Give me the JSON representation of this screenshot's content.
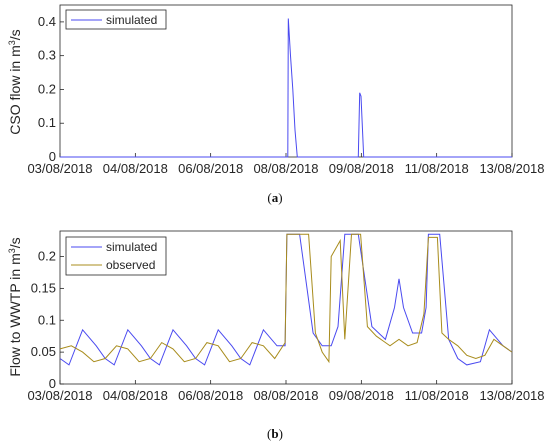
{
  "chart_data": [
    {
      "type": "line",
      "panel_label": "a",
      "ylabel_main": "CSO flow in m",
      "ylabel_sup": "3",
      "ylabel_tail": "/s",
      "xlim": [
        0,
        10
      ],
      "ylim": [
        0,
        0.45
      ],
      "x_tick_labels": [
        "03/08/2018",
        "04/08/2018",
        "06/08/2018",
        "08/08/2018",
        "09/08/2018",
        "11/08/2018",
        "13/08/2018"
      ],
      "x_tick_positions_days": [
        0,
        1.667,
        3.333,
        5,
        6.667,
        8.333,
        10
      ],
      "y_ticks": [
        0,
        0.1,
        0.2,
        0.3,
        0.4
      ],
      "y_tick_labels": [
        "0",
        "0.1",
        "0.2",
        "0.3",
        "0.4"
      ],
      "legend": {
        "position": "top-left",
        "entries": [
          "simulated"
        ]
      },
      "series": [
        {
          "name": "simulated",
          "color": "#4a4af0",
          "points": [
            [
              0,
              0
            ],
            [
              5.04,
              0
            ],
            [
              5.05,
              0.41
            ],
            [
              5.1,
              0.3
            ],
            [
              5.15,
              0.2
            ],
            [
              5.2,
              0.08
            ],
            [
              5.25,
              0
            ],
            [
              6.6,
              0
            ],
            [
              6.63,
              0.19
            ],
            [
              6.66,
              0.18
            ],
            [
              6.72,
              0
            ],
            [
              10,
              0
            ]
          ]
        }
      ]
    },
    {
      "type": "line",
      "panel_label": "b",
      "ylabel_main": "Flow to WWTP in m",
      "ylabel_sup": "3",
      "ylabel_tail": "/s",
      "xlim": [
        0,
        10
      ],
      "ylim": [
        0,
        0.24
      ],
      "x_tick_labels": [
        "03/08/2018",
        "04/08/2018",
        "06/08/2018",
        "08/08/2018",
        "09/08/2018",
        "11/08/2018",
        "13/08/2018"
      ],
      "x_tick_positions_days": [
        0,
        1.667,
        3.333,
        5,
        6.667,
        8.333,
        10
      ],
      "y_ticks": [
        0,
        0.05,
        0.1,
        0.15,
        0.2
      ],
      "y_tick_labels": [
        "0",
        "0.05",
        "0.1",
        "0.15",
        "0.2"
      ],
      "legend": {
        "position": "top-left",
        "entries": [
          "simulated",
          "observed"
        ]
      },
      "series": [
        {
          "name": "simulated",
          "color": "#4a4af0",
          "points": [
            [
              0,
              0.04
            ],
            [
              0.2,
              0.03
            ],
            [
              0.5,
              0.085
            ],
            [
              0.8,
              0.06
            ],
            [
              1,
              0.04
            ],
            [
              1.2,
              0.03
            ],
            [
              1.5,
              0.085
            ],
            [
              1.8,
              0.06
            ],
            [
              2,
              0.04
            ],
            [
              2.2,
              0.03
            ],
            [
              2.5,
              0.085
            ],
            [
              2.8,
              0.06
            ],
            [
              3,
              0.04
            ],
            [
              3.2,
              0.03
            ],
            [
              3.5,
              0.085
            ],
            [
              3.8,
              0.06
            ],
            [
              4,
              0.04
            ],
            [
              4.2,
              0.03
            ],
            [
              4.5,
              0.085
            ],
            [
              4.8,
              0.06
            ],
            [
              4.98,
              0.06
            ],
            [
              5.02,
              0.235
            ],
            [
              5.3,
              0.235
            ],
            [
              5.6,
              0.08
            ],
            [
              5.8,
              0.06
            ],
            [
              6,
              0.06
            ],
            [
              6.15,
              0.09
            ],
            [
              6.3,
              0.235
            ],
            [
              6.6,
              0.235
            ],
            [
              6.9,
              0.09
            ],
            [
              7.2,
              0.07
            ],
            [
              7.4,
              0.12
            ],
            [
              7.5,
              0.165
            ],
            [
              7.6,
              0.12
            ],
            [
              7.8,
              0.08
            ],
            [
              8,
              0.08
            ],
            [
              8.1,
              0.12
            ],
            [
              8.15,
              0.235
            ],
            [
              8.4,
              0.235
            ],
            [
              8.6,
              0.07
            ],
            [
              8.8,
              0.04
            ],
            [
              9,
              0.03
            ],
            [
              9.3,
              0.035
            ],
            [
              9.5,
              0.085
            ],
            [
              9.8,
              0.06
            ],
            [
              10,
              0.05
            ]
          ]
        },
        {
          "name": "observed",
          "color": "#a88c1c",
          "points": [
            [
              0,
              0.055
            ],
            [
              0.25,
              0.06
            ],
            [
              0.5,
              0.05
            ],
            [
              0.75,
              0.035
            ],
            [
              1,
              0.04
            ],
            [
              1.25,
              0.06
            ],
            [
              1.5,
              0.055
            ],
            [
              1.75,
              0.035
            ],
            [
              2,
              0.04
            ],
            [
              2.25,
              0.065
            ],
            [
              2.5,
              0.055
            ],
            [
              2.75,
              0.035
            ],
            [
              3,
              0.04
            ],
            [
              3.25,
              0.065
            ],
            [
              3.5,
              0.06
            ],
            [
              3.75,
              0.035
            ],
            [
              4,
              0.04
            ],
            [
              4.25,
              0.065
            ],
            [
              4.5,
              0.06
            ],
            [
              4.75,
              0.04
            ],
            [
              4.98,
              0.065
            ],
            [
              5.02,
              0.235
            ],
            [
              5.5,
              0.235
            ],
            [
              5.65,
              0.08
            ],
            [
              5.8,
              0.05
            ],
            [
              5.95,
              0.035
            ],
            [
              6,
              0.2
            ],
            [
              6.2,
              0.225
            ],
            [
              6.3,
              0.07
            ],
            [
              6.45,
              0.235
            ],
            [
              6.65,
              0.235
            ],
            [
              6.8,
              0.09
            ],
            [
              7,
              0.075
            ],
            [
              7.3,
              0.06
            ],
            [
              7.5,
              0.07
            ],
            [
              7.7,
              0.06
            ],
            [
              7.9,
              0.065
            ],
            [
              8.05,
              0.11
            ],
            [
              8.15,
              0.23
            ],
            [
              8.35,
              0.23
            ],
            [
              8.45,
              0.08
            ],
            [
              8.6,
              0.07
            ],
            [
              8.8,
              0.06
            ],
            [
              9,
              0.045
            ],
            [
              9.2,
              0.04
            ],
            [
              9.4,
              0.045
            ],
            [
              9.6,
              0.07
            ],
            [
              9.8,
              0.06
            ],
            [
              10,
              0.05
            ]
          ]
        }
      ]
    }
  ]
}
